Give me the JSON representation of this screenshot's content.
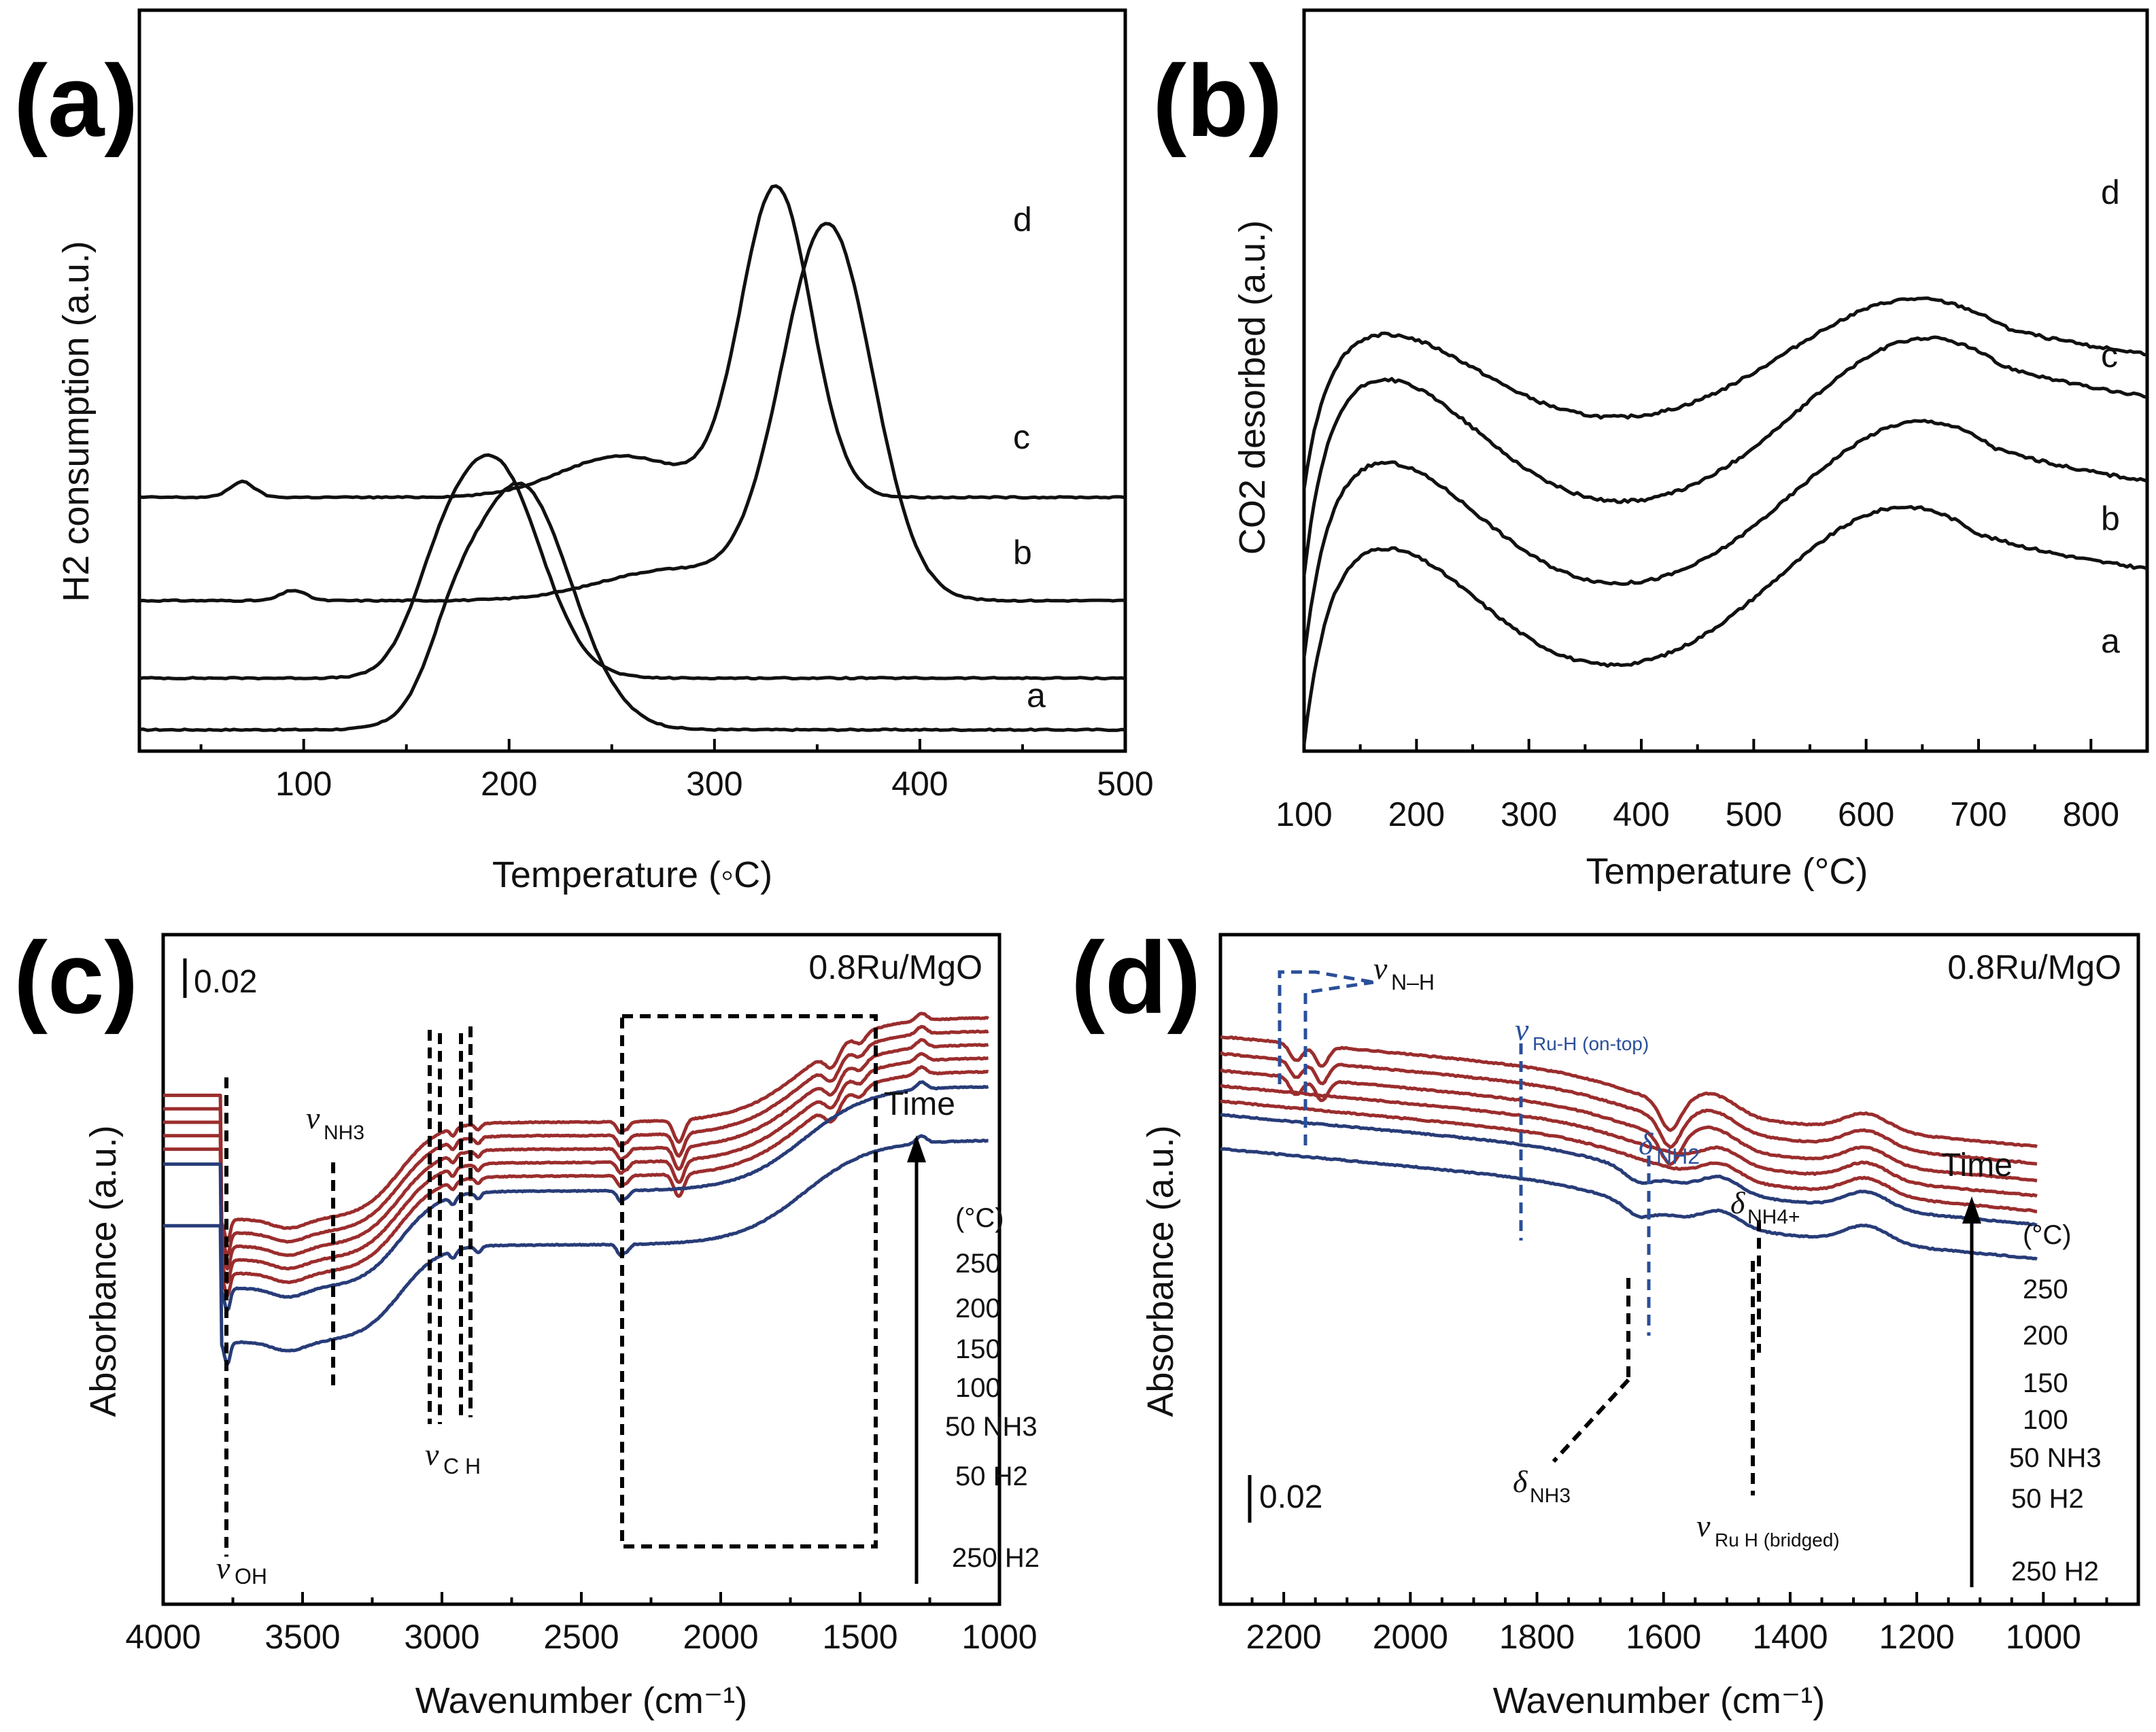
{
  "chart_data": [
    {
      "panel": "(a)",
      "type": "line",
      "xlabel": "Temperature (◦C)",
      "ylabel": "H2 consumption (a.u.)",
      "xlim": [
        20,
        500
      ],
      "xticks": [
        100,
        200,
        300,
        400,
        500
      ],
      "series": [
        {
          "name": "a",
          "baseline": 0.3,
          "peaks": [
            [
              205,
              25,
              9.5
            ],
            [
              172,
              12,
              1.6
            ]
          ]
        },
        {
          "name": "b",
          "baseline": 2.3,
          "peaks": [
            [
              193,
              22,
              8.3
            ],
            [
              165,
              14,
              2.0
            ]
          ]
        },
        {
          "name": "c",
          "baseline": 5.3,
          "peaks": [
            [
              355,
              22,
              14.5
            ],
            [
              95,
              6,
              0.4
            ],
            [
              280,
              35,
              1.2
            ]
          ]
        },
        {
          "name": "d",
          "baseline": 9.3,
          "peaks": [
            [
              330,
              17,
              12.0
            ],
            [
              70,
              6,
              0.6
            ],
            [
              255,
              30,
              1.6
            ]
          ]
        }
      ]
    },
    {
      "panel": "(b)",
      "type": "line",
      "xlabel": "Temperature (°C)",
      "ylabel": "CO2 desorbed (a.u.)",
      "xlim": [
        100,
        850
      ],
      "xticks": [
        100,
        200,
        300,
        400,
        500,
        600,
        700,
        800
      ],
      "series": [
        {
          "name": "a",
          "offset": 0.0,
          "start": 0.0,
          "p1": [
            160,
            8.2
          ],
          "valley": [
            400,
            2.2
          ],
          "p2": [
            635,
            9.7
          ],
          "end": 6.2
        },
        {
          "name": "b",
          "offset": 3.5,
          "start": 0.0,
          "p1": [
            160,
            8.2
          ],
          "valley": [
            400,
            2.2
          ],
          "p2": [
            650,
            9.7
          ],
          "end": 6.2
        },
        {
          "name": "c",
          "offset": 6.9,
          "start": 0.0,
          "p1": [
            160,
            8.2
          ],
          "valley": [
            400,
            2.2
          ],
          "p2": [
            655,
            9.7
          ],
          "end": 6.2
        },
        {
          "name": "d",
          "offset": 10.5,
          "start": 0.0,
          "p1": [
            160,
            6.4
          ],
          "valley": [
            400,
            2.2
          ],
          "p2": [
            645,
            7.7
          ],
          "end": 4.5
        }
      ]
    },
    {
      "panel": "(c)",
      "type": "line",
      "xlabel": "Wavenumber (cm⁻¹)",
      "ylabel": "Absorbance (a.u.)",
      "xlim": [
        4000,
        1000
      ],
      "xticks": [
        4000,
        3500,
        3000,
        2500,
        2000,
        1500,
        1000
      ],
      "sample": "0.8Ru/MgO",
      "scale_bar": "0.02",
      "time_label": "Time",
      "unit_label": "(°C)",
      "series": [
        {
          "name": "250",
          "offset": 0.0,
          "color": "#9b2d2d"
        },
        {
          "name": "200",
          "offset": -0.9,
          "color": "#9b2d2d"
        },
        {
          "name": "150",
          "offset": -1.8,
          "color": "#9b2d2d"
        },
        {
          "name": "100",
          "offset": -2.7,
          "color": "#9b2d2d"
        },
        {
          "name": "50 NH3",
          "offset": -3.6,
          "color": "#9b2d2d"
        },
        {
          "name": "50 H2",
          "offset": -4.6,
          "color": "#283c78"
        },
        {
          "name": "250 H2",
          "offset": -8.2,
          "color": "#283c78"
        }
      ],
      "annotations": {
        "v_oh": "OH",
        "v_nh3": "NH3",
        "v_ch": "C H",
        "v_sym": "ν"
      }
    },
    {
      "panel": "(d)",
      "type": "line",
      "xlabel": "Wavenumber (cm⁻¹)",
      "ylabel": "Absorbance (a.u.)",
      "xlim": [
        2300,
        850
      ],
      "xticks": [
        2200,
        2000,
        1800,
        1600,
        1400,
        1200,
        1000
      ],
      "sample": "0.8Ru/MgO",
      "scale_bar": "0.02",
      "time_label": "Time",
      "unit_label": "(°C)",
      "series": [
        {
          "name": "250",
          "offset": 0.0,
          "color": "#9b2d2d"
        },
        {
          "name": "200",
          "offset": -1.0,
          "color": "#9b2d2d"
        },
        {
          "name": "150",
          "offset": -2.0,
          "color": "#9b2d2d"
        },
        {
          "name": "100",
          "offset": -2.9,
          "color": "#9b2d2d"
        },
        {
          "name": "50 NH3",
          "offset": -3.8,
          "color": "#9b2d2d"
        },
        {
          "name": "50 H2",
          "offset": -4.6,
          "color": "#283c78"
        },
        {
          "name": "250 H2",
          "offset": -6.6,
          "color": "#283c78"
        }
      ],
      "annotations": {
        "v_nh": "N–H",
        "v_ruh_top": "Ru-H (on-top)",
        "d_nh2": "NH2",
        "d_nh4": "NH4+",
        "d_nh3": "NH3",
        "v_ruh_bridge": "Ru H (bridged)",
        "v_sym": "ν",
        "d_sym": "δ"
      }
    }
  ]
}
